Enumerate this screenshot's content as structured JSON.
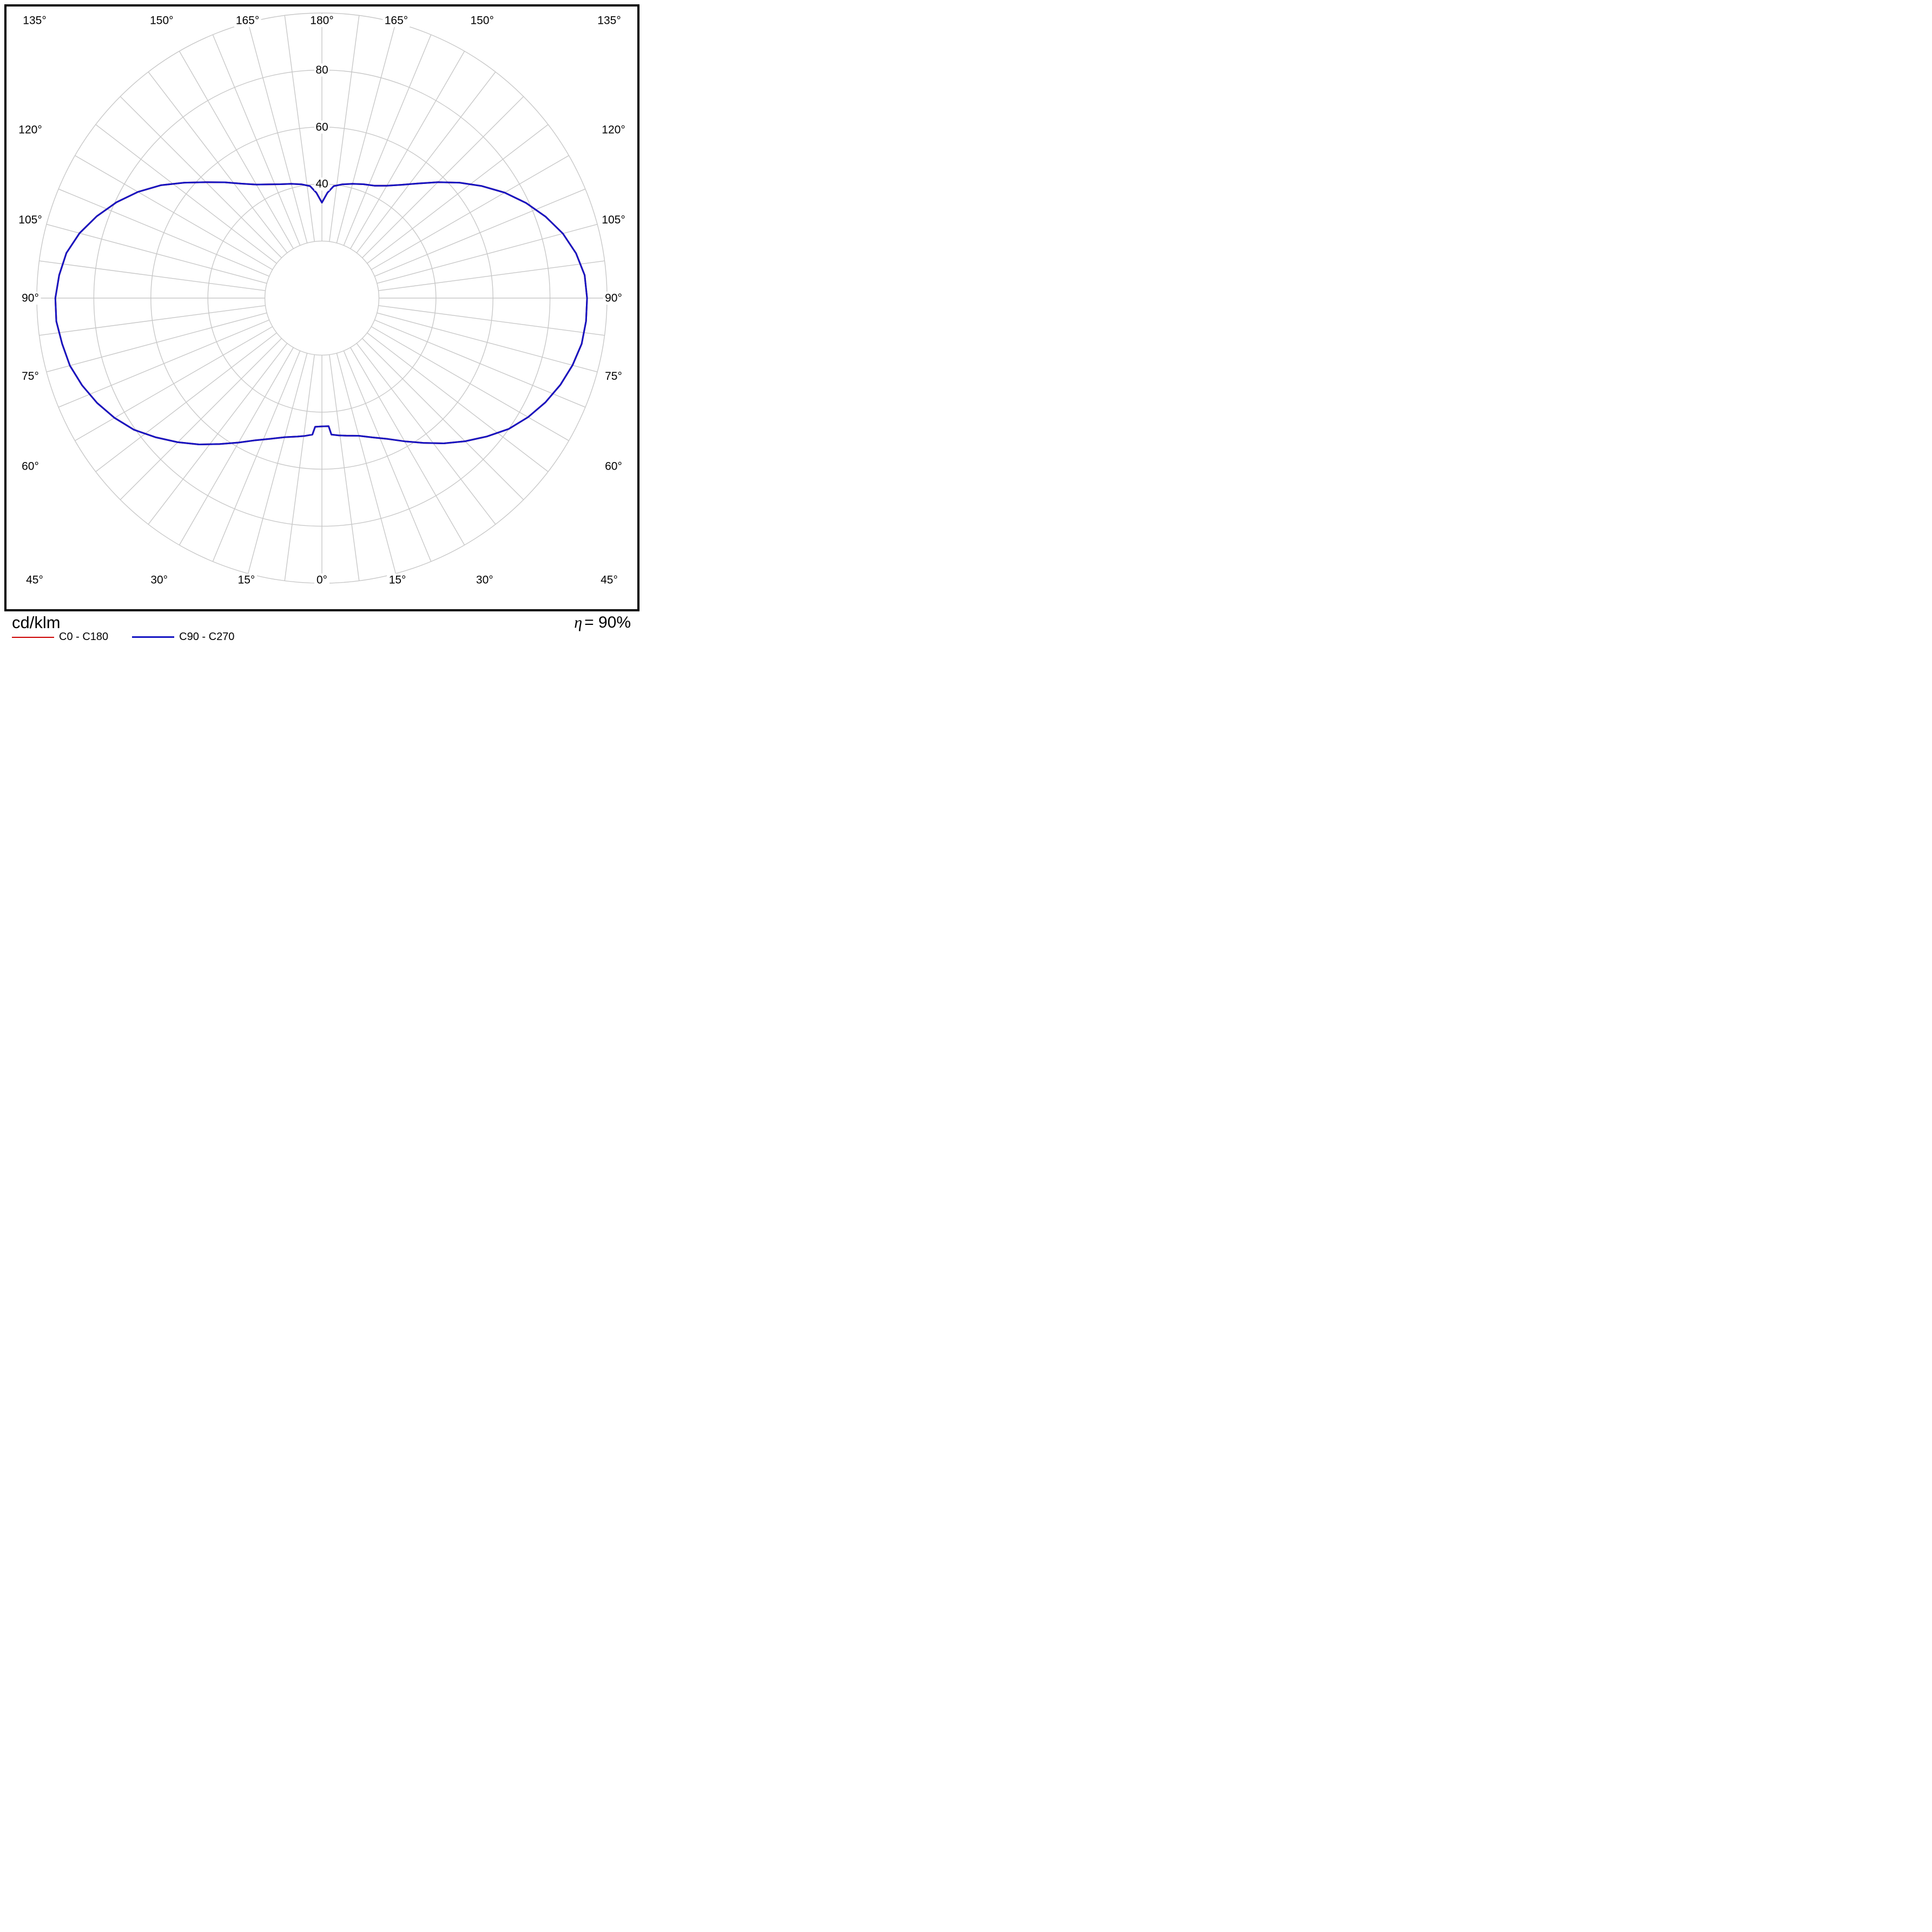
{
  "footer": {
    "unit_label": "cd/klm",
    "efficiency": {
      "symbol": "η",
      "value": "= 90%"
    },
    "legend": [
      {
        "label": "C0 - C180",
        "color": "#cc0000",
        "weight": "thin"
      },
      {
        "label": "C90 - C270",
        "color": "#1515c3",
        "weight": "thick"
      }
    ]
  },
  "chart_data": {
    "type": "polar",
    "subtype": "luminous-intensity-distribution",
    "unit": "cd/klm",
    "gamma_axis": "degrees from nadir, 0° at bottom to 180° at top, mirrored left/right",
    "angle_labels_deg": [
      0,
      15,
      30,
      45,
      60,
      75,
      90,
      105,
      120,
      135,
      150,
      165,
      180
    ],
    "angle_label_suffix": "°",
    "radial_ticks": [
      40,
      60,
      80
    ],
    "radial_circles": [
      20,
      40,
      60,
      80,
      100
    ],
    "r_inner": 20,
    "rmax": 100,
    "spoke_step_deg": 7.5,
    "grid_color": "#c8c8c8",
    "efficiency_percent": 90,
    "series": [
      {
        "name": "C0 - C180",
        "color": "#cc0000",
        "note": "coincides with C90 - C270 curve (hidden beneath it)",
        "right": [
          [
            0,
            45
          ],
          [
            3,
            45
          ],
          [
            4,
            48
          ],
          [
            7,
            48.5
          ],
          [
            10,
            49
          ],
          [
            15,
            50
          ],
          [
            20,
            52
          ],
          [
            25,
            54.5
          ],
          [
            30,
            58
          ],
          [
            35,
            62
          ],
          [
            40,
            66.5
          ],
          [
            45,
            71
          ],
          [
            50,
            75.5
          ],
          [
            55,
            80
          ],
          [
            60,
            83.5
          ],
          [
            65,
            86.5
          ],
          [
            70,
            89
          ],
          [
            75,
            91
          ],
          [
            80,
            92.5
          ],
          [
            85,
            93
          ],
          [
            90,
            93
          ],
          [
            95,
            92.5
          ],
          [
            100,
            90.5
          ],
          [
            105,
            87.5
          ],
          [
            110,
            83.5
          ],
          [
            115,
            79
          ],
          [
            120,
            74
          ],
          [
            125,
            68.5
          ],
          [
            130,
            63
          ],
          [
            135,
            57.5
          ],
          [
            140,
            52.5
          ],
          [
            145,
            48.5
          ],
          [
            150,
            45.5
          ],
          [
            155,
            43.5
          ],
          [
            160,
            42.5
          ],
          [
            165,
            41.5
          ],
          [
            170,
            40.5
          ],
          [
            174,
            39.5
          ],
          [
            177,
            37
          ],
          [
            180,
            33.5
          ]
        ],
        "left": [
          [
            0,
            45
          ],
          [
            3,
            45.2
          ],
          [
            4,
            48
          ],
          [
            7,
            48.7
          ],
          [
            10,
            49.3
          ],
          [
            15,
            50.5
          ],
          [
            20,
            52.5
          ],
          [
            25,
            55
          ],
          [
            30,
            58.5
          ],
          [
            35,
            62.5
          ],
          [
            40,
            67
          ],
          [
            45,
            71.5
          ],
          [
            50,
            76
          ],
          [
            55,
            80.5
          ],
          [
            60,
            84
          ],
          [
            65,
            87
          ],
          [
            70,
            89.5
          ],
          [
            75,
            91.5
          ],
          [
            80,
            92.5
          ],
          [
            85,
            93.5
          ],
          [
            90,
            93.5
          ],
          [
            95,
            92.5
          ],
          [
            100,
            91
          ],
          [
            105,
            88
          ],
          [
            110,
            84
          ],
          [
            115,
            79.5
          ],
          [
            120,
            74.5
          ],
          [
            125,
            69
          ],
          [
            130,
            63
          ],
          [
            135,
            57.5
          ],
          [
            140,
            53
          ],
          [
            145,
            49
          ],
          [
            150,
            46
          ],
          [
            155,
            44
          ],
          [
            160,
            42.5
          ],
          [
            165,
            41.5
          ],
          [
            170,
            40.5
          ],
          [
            174,
            39.5
          ],
          [
            177,
            37
          ],
          [
            180,
            33.5
          ]
        ]
      },
      {
        "name": "C90 - C270",
        "color": "#1515c3",
        "right": [
          [
            0,
            45
          ],
          [
            3,
            45
          ],
          [
            4,
            48
          ],
          [
            7,
            48.5
          ],
          [
            10,
            49
          ],
          [
            15,
            50
          ],
          [
            20,
            52
          ],
          [
            25,
            54.5
          ],
          [
            30,
            58
          ],
          [
            35,
            62
          ],
          [
            40,
            66.5
          ],
          [
            45,
            71
          ],
          [
            50,
            75.5
          ],
          [
            55,
            80
          ],
          [
            60,
            83.5
          ],
          [
            65,
            86.5
          ],
          [
            70,
            89
          ],
          [
            75,
            91
          ],
          [
            80,
            92.5
          ],
          [
            85,
            93
          ],
          [
            90,
            93
          ],
          [
            95,
            92.5
          ],
          [
            100,
            90.5
          ],
          [
            105,
            87.5
          ],
          [
            110,
            83.5
          ],
          [
            115,
            79
          ],
          [
            120,
            74
          ],
          [
            125,
            68.5
          ],
          [
            130,
            63
          ],
          [
            135,
            57.5
          ],
          [
            140,
            52.5
          ],
          [
            145,
            48.5
          ],
          [
            150,
            45.5
          ],
          [
            155,
            43.5
          ],
          [
            160,
            42.5
          ],
          [
            165,
            41.5
          ],
          [
            170,
            40.5
          ],
          [
            174,
            39.5
          ],
          [
            177,
            37
          ],
          [
            180,
            33.5
          ]
        ],
        "left": [
          [
            0,
            45
          ],
          [
            3,
            45.2
          ],
          [
            4,
            48
          ],
          [
            7,
            48.7
          ],
          [
            10,
            49.3
          ],
          [
            15,
            50.5
          ],
          [
            20,
            52.5
          ],
          [
            25,
            55
          ],
          [
            30,
            58.5
          ],
          [
            35,
            62.5
          ],
          [
            40,
            67
          ],
          [
            45,
            71.5
          ],
          [
            50,
            76
          ],
          [
            55,
            80.5
          ],
          [
            60,
            84
          ],
          [
            65,
            87
          ],
          [
            70,
            89.5
          ],
          [
            75,
            91.5
          ],
          [
            80,
            92.5
          ],
          [
            85,
            93.5
          ],
          [
            90,
            93.5
          ],
          [
            95,
            92.5
          ],
          [
            100,
            91
          ],
          [
            105,
            88
          ],
          [
            110,
            84
          ],
          [
            115,
            79.5
          ],
          [
            120,
            74.5
          ],
          [
            125,
            69
          ],
          [
            130,
            63
          ],
          [
            135,
            57.5
          ],
          [
            140,
            53
          ],
          [
            145,
            49
          ],
          [
            150,
            46
          ],
          [
            155,
            44
          ],
          [
            160,
            42.5
          ],
          [
            165,
            41.5
          ],
          [
            170,
            40.5
          ],
          [
            174,
            39.5
          ],
          [
            177,
            37
          ],
          [
            180,
            33.5
          ]
        ]
      }
    ]
  }
}
